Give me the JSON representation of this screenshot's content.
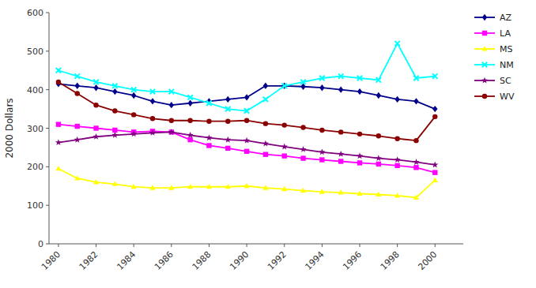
{
  "chart_data": {
    "type": "line",
    "y_label": "2000 Dollars",
    "x": [
      1980,
      1981,
      1982,
      1983,
      1984,
      1985,
      1986,
      1987,
      1988,
      1989,
      1990,
      1991,
      1992,
      1993,
      1994,
      1995,
      1996,
      1997,
      1998,
      1999,
      2000
    ],
    "series": [
      {
        "name": "AZ",
        "color": "#00008B",
        "marker": "diamond",
        "values": [
          415,
          410,
          405,
          395,
          385,
          370,
          360,
          365,
          370,
          375,
          380,
          410,
          410,
          408,
          405,
          400,
          395,
          385,
          375,
          370,
          350
        ]
      },
      {
        "name": "LA",
        "color": "#FF00FF",
        "marker": "square",
        "values": [
          310,
          305,
          300,
          295,
          290,
          292,
          290,
          270,
          255,
          248,
          240,
          232,
          228,
          222,
          218,
          214,
          210,
          207,
          203,
          198,
          185
        ]
      },
      {
        "name": "MS",
        "color": "#FFFF00",
        "marker": "triangle",
        "values": [
          195,
          170,
          160,
          155,
          148,
          145,
          145,
          148,
          148,
          148,
          150,
          145,
          142,
          138,
          135,
          133,
          130,
          128,
          125,
          120,
          165
        ]
      },
      {
        "name": "NM",
        "color": "#00FFFF",
        "marker": "x",
        "values": [
          450,
          435,
          420,
          410,
          400,
          395,
          395,
          380,
          365,
          350,
          345,
          375,
          410,
          420,
          430,
          435,
          430,
          425,
          520,
          430,
          435
        ]
      },
      {
        "name": "SC",
        "color": "#800080",
        "marker": "star",
        "values": [
          263,
          270,
          278,
          282,
          285,
          288,
          290,
          282,
          275,
          270,
          268,
          260,
          252,
          245,
          238,
          233,
          228,
          222,
          218,
          212,
          205
        ]
      },
      {
        "name": "WV",
        "color": "#8B0000",
        "marker": "circle",
        "values": [
          420,
          390,
          360,
          345,
          335,
          325,
          320,
          320,
          318,
          318,
          320,
          312,
          308,
          302,
          295,
          290,
          285,
          280,
          273,
          268,
          330
        ]
      }
    ],
    "xlim": [
      1979.5,
      2001.5
    ],
    "ylim": [
      0,
      600
    ],
    "xticks": [
      1980,
      1982,
      1984,
      1986,
      1988,
      1990,
      1992,
      1994,
      1996,
      1998,
      2000
    ],
    "yticks": [
      0,
      100,
      200,
      300,
      400,
      500,
      600
    ],
    "grid": false,
    "legend": "right"
  }
}
